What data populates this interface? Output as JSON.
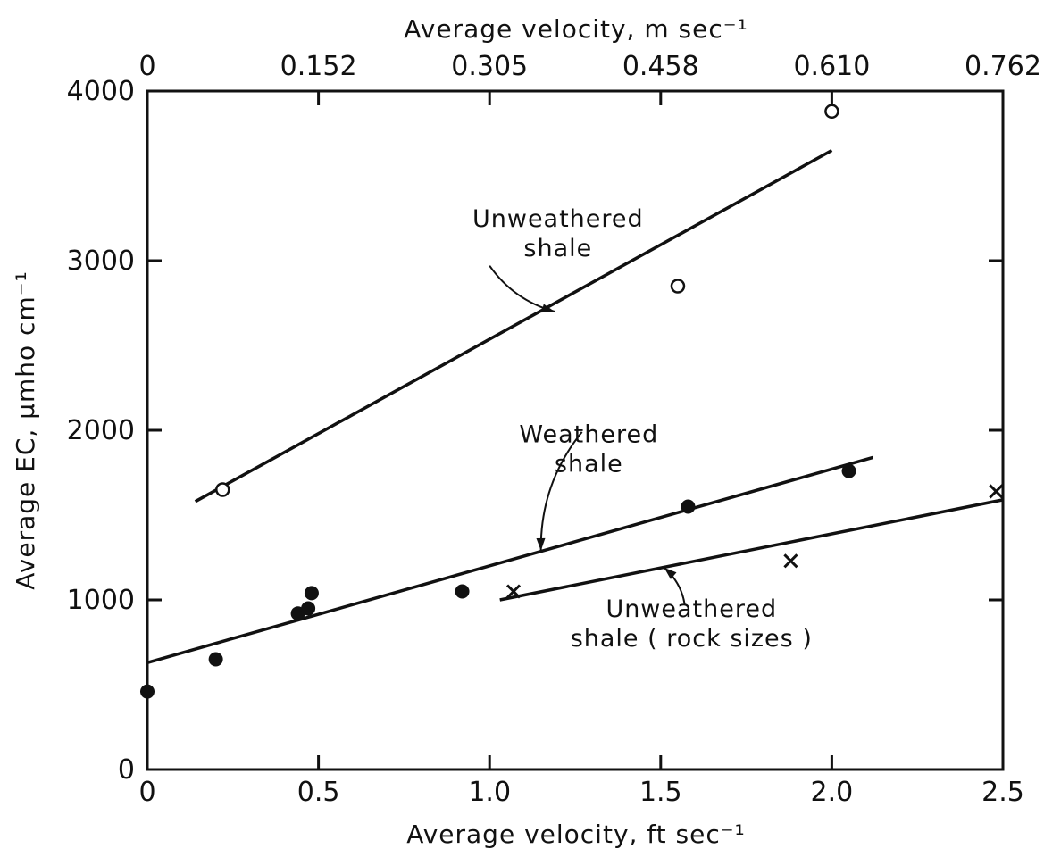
{
  "chart_data": {
    "type": "scatter",
    "title": "",
    "xlabel": "Average velocity, ft sec⁻¹",
    "x2label": "Average velocity, m sec⁻¹",
    "ylabel": "Average EC, μmho cm⁻¹",
    "xlim": [
      0,
      2.5
    ],
    "ylim": [
      0,
      4000
    ],
    "grid": false,
    "x_ticks": [
      0,
      0.5,
      1.0,
      1.5,
      2.0,
      2.5
    ],
    "x_tick_labels": [
      "0",
      "0.5",
      "1.0",
      "1.5",
      "2.0",
      "2.5"
    ],
    "x2_ticks": [
      0,
      0.5,
      1.0,
      1.5,
      2.0,
      2.5
    ],
    "x2_tick_labels": [
      "0",
      "0.152",
      "0.305",
      "0.458",
      "0.610",
      "0.762"
    ],
    "y_ticks": [
      0,
      1000,
      2000,
      3000,
      4000
    ],
    "y_tick_labels": [
      "0",
      "1000",
      "2000",
      "3000",
      "4000"
    ],
    "series": [
      {
        "marker": "open-circle",
        "points": [
          [
            0.22,
            1650
          ],
          [
            1.55,
            2850
          ],
          [
            2.0,
            3880
          ]
        ],
        "fit": [
          [
            0.14,
            1580
          ],
          [
            2.0,
            3650
          ]
        ]
      },
      {
        "marker": "filled-circle",
        "points": [
          [
            0.0,
            460
          ],
          [
            0.2,
            650
          ],
          [
            0.44,
            920
          ],
          [
            0.47,
            950
          ],
          [
            0.48,
            1040
          ],
          [
            0.92,
            1050
          ],
          [
            1.58,
            1550
          ],
          [
            2.05,
            1760
          ]
        ],
        "fit": [
          [
            0.0,
            630
          ],
          [
            2.12,
            1840
          ]
        ]
      },
      {
        "marker": "x",
        "points": [
          [
            1.07,
            1050
          ],
          [
            1.88,
            1230
          ],
          [
            2.48,
            1640
          ]
        ],
        "fit": [
          [
            1.03,
            1000
          ],
          [
            2.5,
            1590
          ]
        ]
      }
    ],
    "annotations": [
      {
        "lines": [
          "Unweathered",
          "shale"
        ],
        "x": 1.2,
        "y": 3200,
        "arrow_from": [
          1.0,
          2970
        ],
        "arrow_to": [
          1.19,
          2700
        ]
      },
      {
        "lines": [
          "Weathered",
          "shale"
        ],
        "x": 1.29,
        "y": 1930,
        "arrow_from": [
          1.27,
          1990
        ],
        "arrow_to": [
          1.15,
          1290
        ]
      },
      {
        "lines": [
          "Unweathered",
          "shale ( rock sizes )"
        ],
        "x": 1.59,
        "y": 900,
        "arrow_from": [
          1.57,
          975
        ],
        "arrow_to": [
          1.51,
          1190
        ]
      }
    ]
  }
}
